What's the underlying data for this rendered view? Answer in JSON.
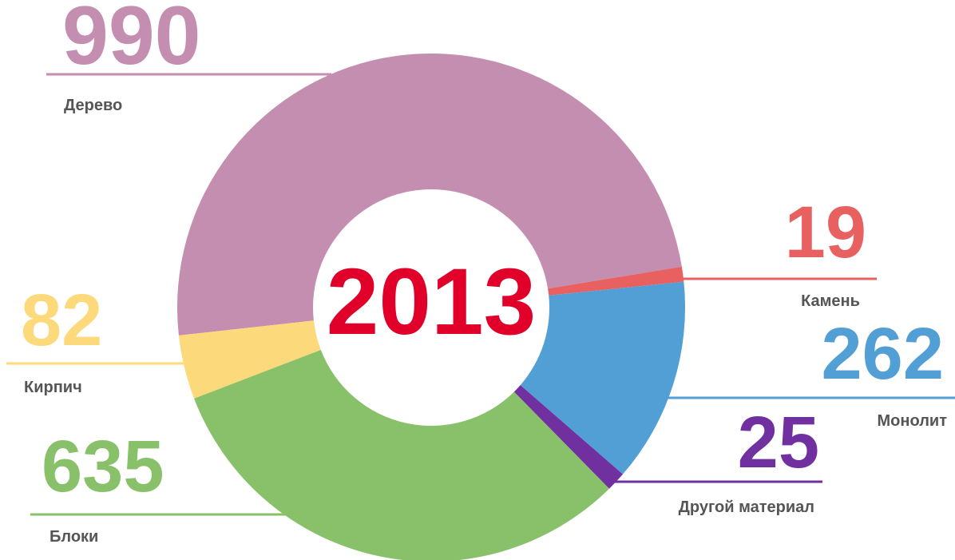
{
  "chart_data": {
    "type": "donut",
    "center_label": "2013",
    "categories": [
      "Дерево",
      "Камень",
      "Монолит",
      "Другой материал",
      "Блоки",
      "Кирпич"
    ],
    "values": [
      990,
      19,
      262,
      25,
      635,
      82
    ],
    "colors": [
      "#c48eb0",
      "#e8605f",
      "#529fd6",
      "#7030a0",
      "#88c16a",
      "#fcd97a"
    ],
    "center_color": "#e0002a"
  }
}
